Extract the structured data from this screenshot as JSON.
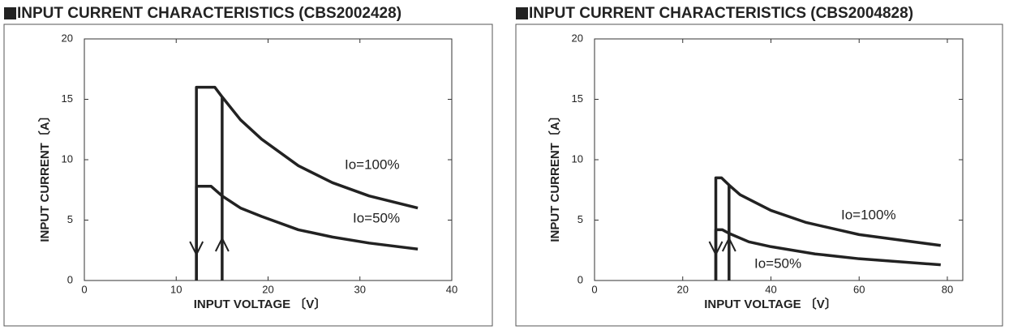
{
  "chart_data": [
    {
      "type": "line",
      "title": "INPUT CURRENT CHARACTERISTICS (CBS2002428)",
      "x_label": "INPUT VOLTAGE 〔V〕",
      "y_label": "INPUT CURRENT〔A〕",
      "xlim": [
        0,
        40
      ],
      "ylim": [
        0,
        20
      ],
      "xticks": [
        0,
        10,
        20,
        30,
        40
      ],
      "yticks": [
        0,
        5,
        10,
        15,
        20
      ],
      "grid": false,
      "series": [
        {
          "name": "Io=100%",
          "color": "#222222",
          "x": [
            12.2,
            12.2,
            14.2,
            15,
            17,
            19.3,
            23.3,
            27,
            31,
            36.3,
            15,
            15,
            15
          ],
          "values": [
            0,
            16,
            16,
            15.2,
            13.3,
            11.7,
            9.5,
            8.1,
            7.0,
            6.0,
            null,
            0,
            15.2
          ]
        },
        {
          "name": "Io=50%",
          "color": "#222222",
          "x": [
            12.2,
            12.2,
            13.8,
            15,
            17,
            19.3,
            23.3,
            27,
            31,
            36.3
          ],
          "values": [
            0,
            7.8,
            7.8,
            7.0,
            6.0,
            5.3,
            4.2,
            3.6,
            3.1,
            2.6
          ]
        }
      ]
    },
    {
      "type": "line",
      "title": "INPUT CURRENT CHARACTERISTICS (CBS2004828)",
      "x_label": "INPUT VOLTAGE 〔V〕",
      "y_label": "INPUT CURRENT〔A〕",
      "xlim": [
        0,
        83.5
      ],
      "ylim": [
        0,
        20
      ],
      "xticks": [
        0,
        20,
        40,
        60,
        80
      ],
      "yticks": [
        0,
        5,
        10,
        15,
        20
      ],
      "grid": false,
      "series": [
        {
          "name": "Io=100%",
          "color": "#222222",
          "x": [
            27.5,
            27.5,
            28.8,
            30.5,
            33,
            40,
            48,
            60,
            78.5,
            30.5,
            30.5,
            30.5
          ],
          "values": [
            0,
            8.5,
            8.5,
            7.9,
            7.1,
            5.8,
            4.8,
            3.8,
            2.9,
            null,
            0,
            7.9
          ]
        },
        {
          "name": "Io=50%",
          "color": "#222222",
          "x": [
            27.5,
            27.5,
            29,
            30.5,
            35,
            40,
            50,
            60,
            78.5
          ],
          "values": [
            0,
            4.2,
            4.2,
            3.9,
            3.2,
            2.8,
            2.2,
            1.8,
            1.3
          ]
        }
      ]
    }
  ]
}
